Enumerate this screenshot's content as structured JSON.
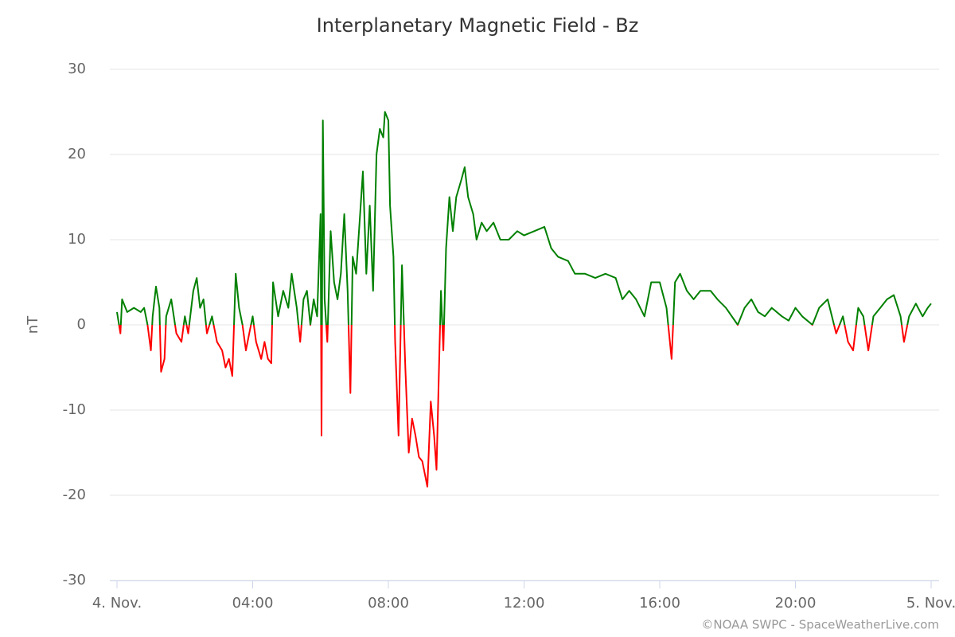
{
  "chart_data": {
    "type": "line",
    "title": "Interplanetary Magnetic Field - Bz",
    "y_label": "nT",
    "credits": "©NOAA SWPC - SpaceWeatherLive.com",
    "xlim": [
      0,
      24
    ],
    "xticks": [
      {
        "value": 0,
        "label": "4. Nov."
      },
      {
        "value": 4,
        "label": "04:00"
      },
      {
        "value": 8,
        "label": "08:00"
      },
      {
        "value": 12,
        "label": "12:00"
      },
      {
        "value": 16,
        "label": "16:00"
      },
      {
        "value": 20,
        "label": "20:00"
      },
      {
        "value": 24,
        "label": "5. Nov."
      }
    ],
    "ylim": [
      -30,
      30
    ],
    "yticks": [
      -30,
      -20,
      -10,
      0,
      10,
      20,
      30
    ],
    "grid": true,
    "x": [
      0,
      0.1,
      0.15,
      0.3,
      0.5,
      0.7,
      0.8,
      0.9,
      1.0,
      1.05,
      1.15,
      1.25,
      1.3,
      1.4,
      1.45,
      1.6,
      1.75,
      1.9,
      2.0,
      2.1,
      2.25,
      2.35,
      2.45,
      2.55,
      2.65,
      2.8,
      2.95,
      3.1,
      3.2,
      3.3,
      3.4,
      3.5,
      3.6,
      3.7,
      3.8,
      3.9,
      4.0,
      4.1,
      4.25,
      4.35,
      4.45,
      4.55,
      4.6,
      4.75,
      4.9,
      5.05,
      5.15,
      5.3,
      5.4,
      5.5,
      5.6,
      5.7,
      5.8,
      5.9,
      6.0,
      6.03,
      6.07,
      6.12,
      6.2,
      6.3,
      6.4,
      6.5,
      6.6,
      6.7,
      6.8,
      6.88,
      6.95,
      7.05,
      7.15,
      7.25,
      7.35,
      7.45,
      7.55,
      7.65,
      7.75,
      7.85,
      7.9,
      8.0,
      8.05,
      8.15,
      8.2,
      8.3,
      8.4,
      8.5,
      8.6,
      8.7,
      8.8,
      8.9,
      9.0,
      9.1,
      9.15,
      9.25,
      9.35,
      9.42,
      9.5,
      9.55,
      9.62,
      9.7,
      9.8,
      9.9,
      10.0,
      10.15,
      10.25,
      10.35,
      10.5,
      10.6,
      10.75,
      10.9,
      11.1,
      11.3,
      11.55,
      11.8,
      12.0,
      12.3,
      12.6,
      12.8,
      13.0,
      13.3,
      13.5,
      13.8,
      14.1,
      14.4,
      14.7,
      14.9,
      15.1,
      15.3,
      15.55,
      15.75,
      16.0,
      16.2,
      16.35,
      16.45,
      16.6,
      16.8,
      17.0,
      17.2,
      17.5,
      17.7,
      17.95,
      18.3,
      18.5,
      18.7,
      18.9,
      19.1,
      19.3,
      19.6,
      19.8,
      20.0,
      20.2,
      20.5,
      20.7,
      20.95,
      21.2,
      21.4,
      21.55,
      21.7,
      21.85,
      22.0,
      22.15,
      22.3,
      22.5,
      22.7,
      22.9,
      23.1,
      23.2,
      23.35,
      23.55,
      23.75,
      23.9,
      24.0
    ],
    "series": [
      {
        "name": "Bz",
        "color": "#008000",
        "negative_color": "#ff0000",
        "values": [
          1.5,
          -1,
          3,
          1.5,
          2,
          1.5,
          2,
          0,
          -3,
          1,
          4.5,
          2,
          -5.5,
          -4,
          1,
          3,
          -1,
          -2,
          1,
          -1,
          4,
          5.5,
          2,
          3,
          -1,
          1,
          -2,
          -3,
          -5,
          -4,
          -6,
          6,
          2,
          0,
          -3,
          -1,
          1,
          -2,
          -4,
          -2,
          -4,
          -4.5,
          5,
          1,
          4,
          2,
          6,
          2,
          -2,
          3,
          4,
          0,
          3,
          1,
          13,
          -13,
          24,
          3,
          -2,
          11,
          5,
          3,
          6,
          13,
          4,
          -8,
          8,
          6,
          12,
          18,
          6,
          14,
          4,
          20,
          23,
          22,
          25,
          24,
          14,
          8,
          -2,
          -13,
          7,
          -5,
          -15,
          -11,
          -13,
          -15.5,
          -16,
          -18,
          -19,
          -9,
          -13,
          -17,
          -4,
          4,
          -3,
          9,
          15,
          11,
          15,
          17,
          18.5,
          15,
          13,
          10,
          12,
          11,
          12,
          10,
          10,
          11,
          10.5,
          11,
          11.5,
          9,
          8,
          7.5,
          6,
          6,
          5.5,
          6,
          5.5,
          3,
          4,
          3,
          1,
          5,
          5,
          2,
          -4,
          5,
          6,
          4,
          3,
          4,
          4,
          3,
          2,
          0,
          2,
          3,
          1.5,
          1,
          2,
          1,
          0.5,
          2,
          1,
          0,
          2,
          3,
          -1,
          1,
          -2,
          -3,
          2,
          1,
          -3,
          1,
          2,
          3,
          3.5,
          1,
          -2,
          1,
          2.5,
          1,
          2,
          2.5
        ]
      }
    ]
  }
}
